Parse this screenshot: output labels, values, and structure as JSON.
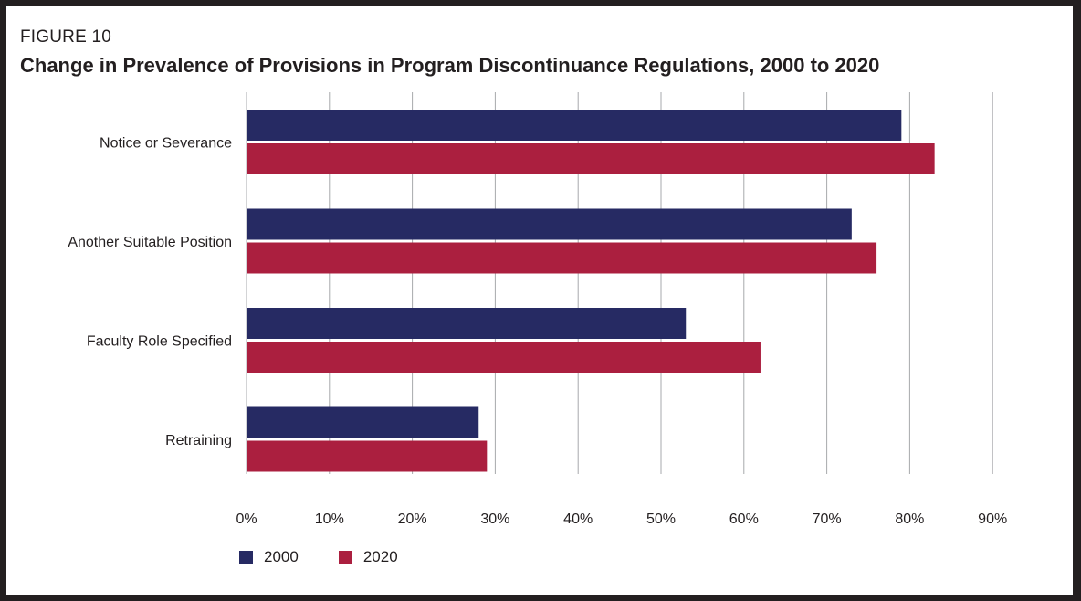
{
  "figure_label": "FIGURE 10",
  "title": "Change in Prevalence of Provisions in Program Discontinuance Regulations, 2000 to 2020",
  "colors": {
    "s2000": "#262a63",
    "s2020": "#ab1f3f",
    "grid": "#a7a9ac",
    "text": "#231f20"
  },
  "chart_data": {
    "type": "bar",
    "orientation": "horizontal",
    "title": "Change in Prevalence of Provisions in Program Discontinuance Regulations, 2000 to 2020",
    "categories": [
      "Notice or Severance",
      "Another Suitable Position",
      "Faculty Role Specified",
      "Retraining"
    ],
    "series": [
      {
        "name": "2000",
        "values": [
          79,
          73,
          53,
          28
        ]
      },
      {
        "name": "2020",
        "values": [
          83,
          76,
          62,
          29
        ]
      }
    ],
    "xlim": [
      0,
      90
    ],
    "xticks": [
      "0%",
      "10%",
      "20%",
      "30%",
      "40%",
      "50%",
      "60%",
      "70%",
      "80%",
      "90%"
    ],
    "xlabel": "",
    "ylabel": "",
    "grid": "vertical",
    "legend": "bottom-left"
  }
}
